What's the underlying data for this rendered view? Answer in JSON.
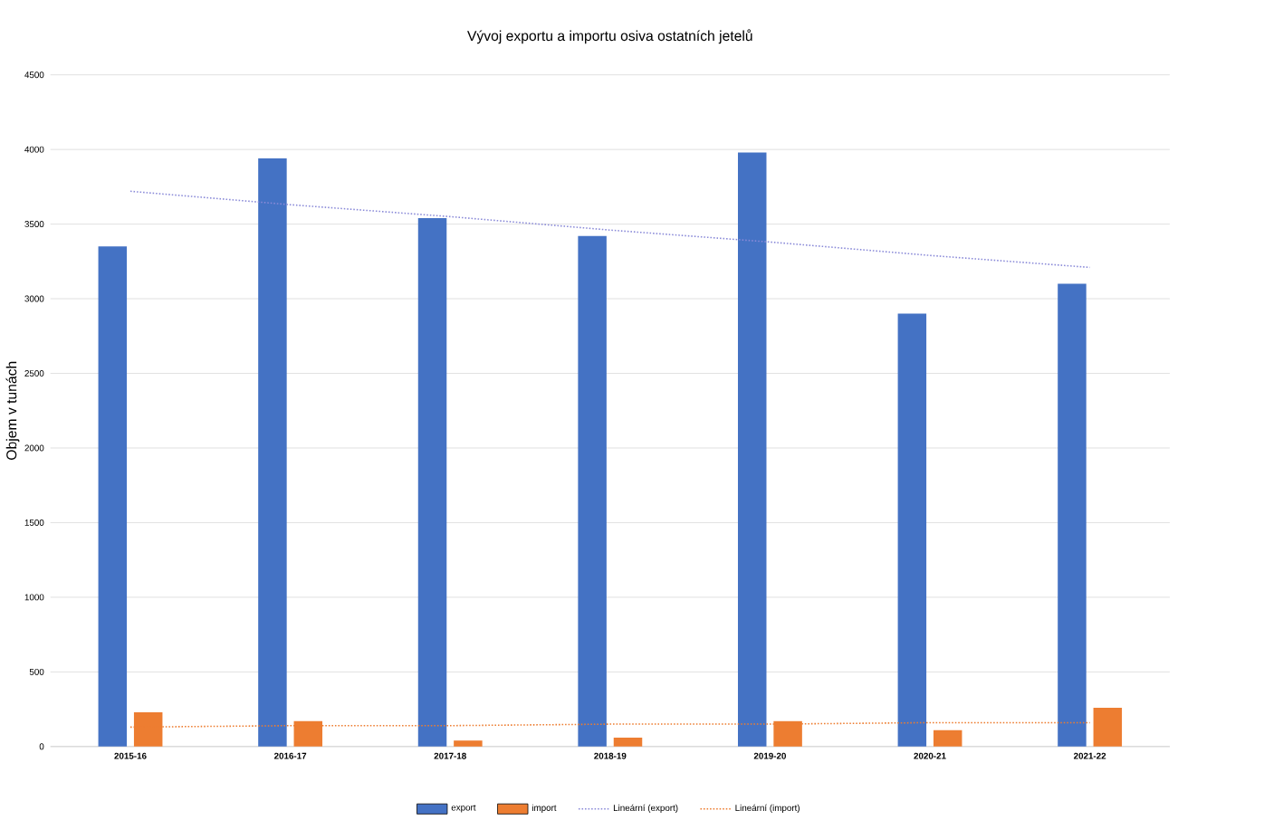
{
  "chart_data": {
    "type": "bar",
    "title": "Vývoj exportu a importu osiva ostatních jetelů",
    "ylabel": "Objem v tunách",
    "categories": [
      "2015-16",
      "2016-17",
      "2017-18",
      "2018-19",
      "2019-20",
      "2020-21",
      "2021-22"
    ],
    "series": [
      {
        "name": "export",
        "color": "#4472c4",
        "values": [
          3350,
          3940,
          3540,
          3420,
          3980,
          2900,
          3100
        ]
      },
      {
        "name": "import",
        "color": "#ed7d31",
        "values": [
          230,
          170,
          40,
          60,
          170,
          110,
          260
        ]
      },
      {
        "name": "Lineární (export)",
        "type": "line",
        "color": "#8a8ad8",
        "values": [
          3720,
          3630,
          3550,
          3460,
          3380,
          3290,
          3210
        ]
      },
      {
        "name": "Lineární (import)",
        "type": "line",
        "color": "#ed7d31",
        "values": [
          130,
          140,
          140,
          150,
          150,
          160,
          160
        ]
      }
    ],
    "ylim": [
      0,
      4500
    ],
    "yticks": [
      0,
      500,
      1000,
      1500,
      2000,
      2500,
      3000,
      3500,
      4000,
      4500
    ],
    "grid": "y",
    "legend": "bottom",
    "line_style": "dotted",
    "marker": "none"
  }
}
